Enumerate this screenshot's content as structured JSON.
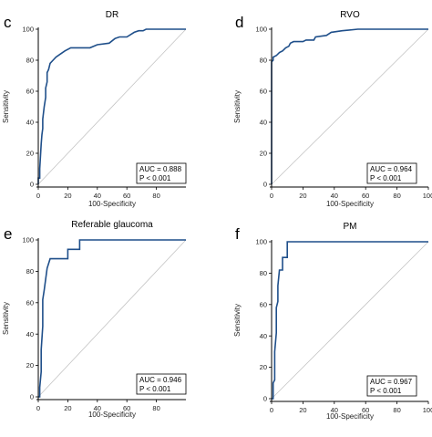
{
  "chart_data": [
    {
      "panel": "c",
      "type": "line",
      "title": "DR",
      "xlabel": "100-Specificity",
      "ylabel": "Sensitivity",
      "xlim": [
        0,
        100
      ],
      "ylim": [
        0,
        100
      ],
      "xticks": [
        "0",
        "20",
        "40",
        "60",
        "80"
      ],
      "yticks": [
        "0",
        "20",
        "40",
        "60",
        "80",
        "100"
      ],
      "reference_line": true,
      "auc_label": "AUC = 0.888",
      "p_label": "P < 0.001",
      "roc": [
        [
          0,
          0
        ],
        [
          0,
          4
        ],
        [
          1,
          4
        ],
        [
          1,
          10
        ],
        [
          1.5,
          18
        ],
        [
          2,
          26
        ],
        [
          2.5,
          32
        ],
        [
          3,
          36
        ],
        [
          3,
          42
        ],
        [
          4,
          50
        ],
        [
          5,
          56
        ],
        [
          5,
          62
        ],
        [
          6,
          66
        ],
        [
          6,
          72
        ],
        [
          7,
          74
        ],
        [
          8,
          78
        ],
        [
          10,
          80
        ],
        [
          12,
          82
        ],
        [
          15,
          84
        ],
        [
          18,
          86
        ],
        [
          22,
          88
        ],
        [
          35,
          88
        ],
        [
          40,
          90
        ],
        [
          48,
          91
        ],
        [
          52,
          94
        ],
        [
          55,
          95
        ],
        [
          60,
          95
        ],
        [
          65,
          98
        ],
        [
          68,
          99
        ],
        [
          71,
          99
        ],
        [
          73,
          100
        ],
        [
          100,
          100
        ]
      ]
    },
    {
      "panel": "d",
      "type": "line",
      "title": "RVO",
      "xlabel": "100-Specificity",
      "ylabel": "Sensitivity",
      "xlim": [
        0,
        100
      ],
      "ylim": [
        0,
        100
      ],
      "xticks": [
        "0",
        "20",
        "40",
        "60",
        "80",
        "100"
      ],
      "yticks": [
        "0",
        "20",
        "40",
        "60",
        "80",
        "100"
      ],
      "reference_line": true,
      "auc_label": "AUC = 0.964",
      "p_label": "P < 0.001",
      "roc": [
        [
          0,
          0
        ],
        [
          0,
          79
        ],
        [
          1,
          80
        ],
        [
          1,
          82
        ],
        [
          3,
          83
        ],
        [
          5,
          85
        ],
        [
          7,
          86
        ],
        [
          9,
          88
        ],
        [
          11,
          89
        ],
        [
          12,
          91
        ],
        [
          14,
          92
        ],
        [
          20,
          92
        ],
        [
          22,
          93
        ],
        [
          27,
          93
        ],
        [
          28,
          95
        ],
        [
          35,
          96
        ],
        [
          38,
          98
        ],
        [
          45,
          99
        ],
        [
          55,
          100
        ],
        [
          100,
          100
        ]
      ]
    },
    {
      "panel": "e",
      "type": "line",
      "title": "Referable glaucoma",
      "xlabel": "100-Specificity",
      "ylabel": "Sensitivity",
      "xlim": [
        0,
        100
      ],
      "ylim": [
        0,
        100
      ],
      "xticks": [
        "0",
        "20",
        "40",
        "60",
        "80"
      ],
      "yticks": [
        "0",
        "20",
        "40",
        "60",
        "80",
        "100"
      ],
      "reference_line": true,
      "auc_label": "AUC = 0.946",
      "p_label": "P < 0.001",
      "roc": [
        [
          0,
          0
        ],
        [
          1,
          0
        ],
        [
          1,
          6
        ],
        [
          2,
          16
        ],
        [
          2,
          30
        ],
        [
          3,
          45
        ],
        [
          3,
          62
        ],
        [
          4,
          68
        ],
        [
          5,
          75
        ],
        [
          6,
          82
        ],
        [
          8,
          88
        ],
        [
          20,
          88
        ],
        [
          20,
          94
        ],
        [
          28,
          94
        ],
        [
          28,
          100
        ],
        [
          100,
          100
        ]
      ]
    },
    {
      "panel": "f",
      "type": "line",
      "title": "PM",
      "xlabel": "100-Specificity",
      "ylabel": "Sensitivity",
      "xlim": [
        0,
        100
      ],
      "ylim": [
        0,
        100
      ],
      "xticks": [
        "0",
        "20",
        "40",
        "60",
        "80",
        "100"
      ],
      "yticks": [
        "0",
        "20",
        "40",
        "60",
        "80",
        "100"
      ],
      "reference_line": true,
      "auc_label": "AUC = 0.967",
      "p_label": "P < 0.001",
      "roc": [
        [
          0,
          0
        ],
        [
          1,
          0
        ],
        [
          1,
          10
        ],
        [
          2,
          12
        ],
        [
          2,
          30
        ],
        [
          3,
          42
        ],
        [
          3,
          58
        ],
        [
          4,
          62
        ],
        [
          4,
          72
        ],
        [
          5,
          82
        ],
        [
          7,
          82
        ],
        [
          7,
          90
        ],
        [
          10,
          90
        ],
        [
          10,
          100
        ],
        [
          100,
          100
        ]
      ]
    }
  ],
  "colors": {
    "roc_line": "#1f4f8a",
    "reference_line": "#c4c4c4",
    "axis": "#000000"
  }
}
